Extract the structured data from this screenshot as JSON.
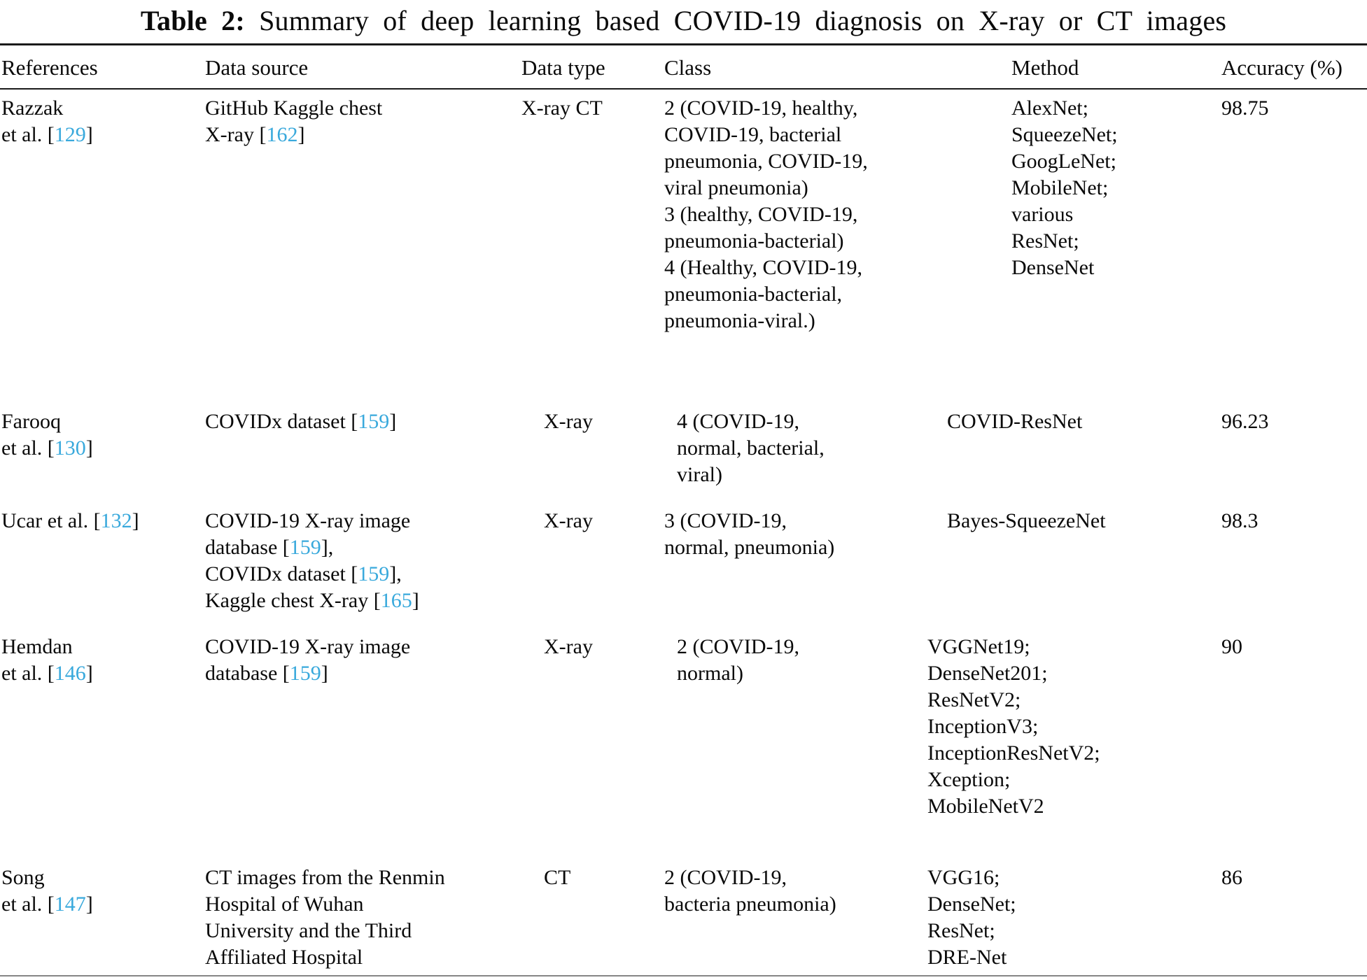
{
  "colors": {
    "link": "#39a9dc",
    "text": "#0a0a0a",
    "rule_dark": "#1a1a1a",
    "rule_light": "#868686"
  },
  "title": {
    "label": "Table 2:",
    "text": "Summary of deep learning based COVID-19 diagnosis on X-ray or CT images"
  },
  "columns": {
    "references": "References",
    "data_source": "Data source",
    "data_type": "Data type",
    "class": "Class",
    "method": "Method",
    "accuracy": "Accuracy (%)"
  },
  "rows": [
    {
      "reference": [
        {
          "t": "Razzak\net al. ["
        },
        {
          "t": "129",
          "link": true
        },
        {
          "t": "]"
        }
      ],
      "source": [
        {
          "t": "GitHub Kaggle chest\nX-ray ["
        },
        {
          "t": "162",
          "link": true
        },
        {
          "t": "]"
        }
      ],
      "data_type": "X-ray CT",
      "class": "2 (COVID-19, healthy,\nCOVID-19, bacterial\npneumonia, COVID-19,\nviral pneumonia)\n3 (healthy, COVID-19,\npneumonia-bacterial)\n4 (Healthy, COVID-19,\npneumonia-bacterial,\npneumonia-viral.)",
      "method": "AlexNet;\nSqueezeNet;\nGoogLeNet;\nMobileNet;\nvarious\nResNet;\nDenseNet",
      "accuracy": "98.75"
    },
    {
      "reference": [
        {
          "t": "Farooq\net al. ["
        },
        {
          "t": "130",
          "link": true
        },
        {
          "t": "]"
        }
      ],
      "source": [
        {
          "t": "COVIDx dataset ["
        },
        {
          "t": "159",
          "link": true
        },
        {
          "t": "]"
        }
      ],
      "data_type": "X-ray",
      "class": "4 (COVID-19,\nnormal, bacterial,\nviral)",
      "method": "COVID-ResNet",
      "accuracy": "96.23"
    },
    {
      "reference": [
        {
          "t": "Ucar et al. ["
        },
        {
          "t": "132",
          "link": true
        },
        {
          "t": "]"
        }
      ],
      "source": [
        {
          "t": "COVID-19 X-ray image\ndatabase ["
        },
        {
          "t": "159",
          "link": true
        },
        {
          "t": "],\nCOVIDx dataset ["
        },
        {
          "t": "159",
          "link": true
        },
        {
          "t": "],\nKaggle chest X-ray ["
        },
        {
          "t": "165",
          "link": true
        },
        {
          "t": "]"
        }
      ],
      "data_type": "X-ray",
      "class": "3 (COVID-19,\nnormal, pneumonia)",
      "method": "Bayes-SqueezeNet",
      "accuracy": "98.3"
    },
    {
      "reference": [
        {
          "t": "Hemdan\net al. ["
        },
        {
          "t": "146",
          "link": true
        },
        {
          "t": "]"
        }
      ],
      "source": [
        {
          "t": "COVID-19 X-ray image\ndatabase ["
        },
        {
          "t": "159",
          "link": true
        },
        {
          "t": "]"
        }
      ],
      "data_type": "X-ray",
      "class": "2 (COVID-19,\nnormal)",
      "method": "VGGNet19;\nDenseNet201;\nResNetV2;\nInceptionV3;\nInceptionResNetV2;\nXception;\nMobileNetV2",
      "accuracy": "90"
    },
    {
      "reference": [
        {
          "t": "Song\net al. ["
        },
        {
          "t": "147",
          "link": true
        },
        {
          "t": "]"
        }
      ],
      "source": [
        {
          "t": "CT images from the Renmin\nHospital of Wuhan\nUniversity and the Third\nAffiliated Hospital"
        }
      ],
      "data_type": "CT",
      "class": "2 (COVID-19,\nbacteria pneumonia)",
      "method": "VGG16;\nDenseNet;\nResNet;\nDRE-Net",
      "accuracy": "86"
    }
  ]
}
